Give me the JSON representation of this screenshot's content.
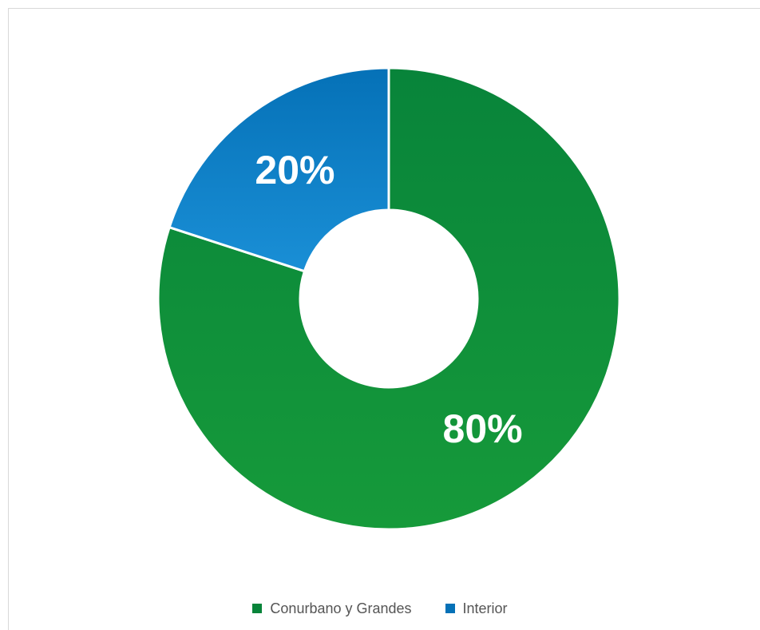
{
  "chart_data": {
    "type": "pie",
    "variant": "donut",
    "title": "",
    "legend_position": "bottom",
    "slices": [
      {
        "label": "Conurbano y Grandes",
        "value": 80,
        "display": "80%",
        "color": "#08843a",
        "color_light": "#169a3a"
      },
      {
        "label": "Interior",
        "value": 20,
        "display": "20%",
        "color": "#0571b7",
        "color_light": "#1a8fd6"
      }
    ]
  }
}
